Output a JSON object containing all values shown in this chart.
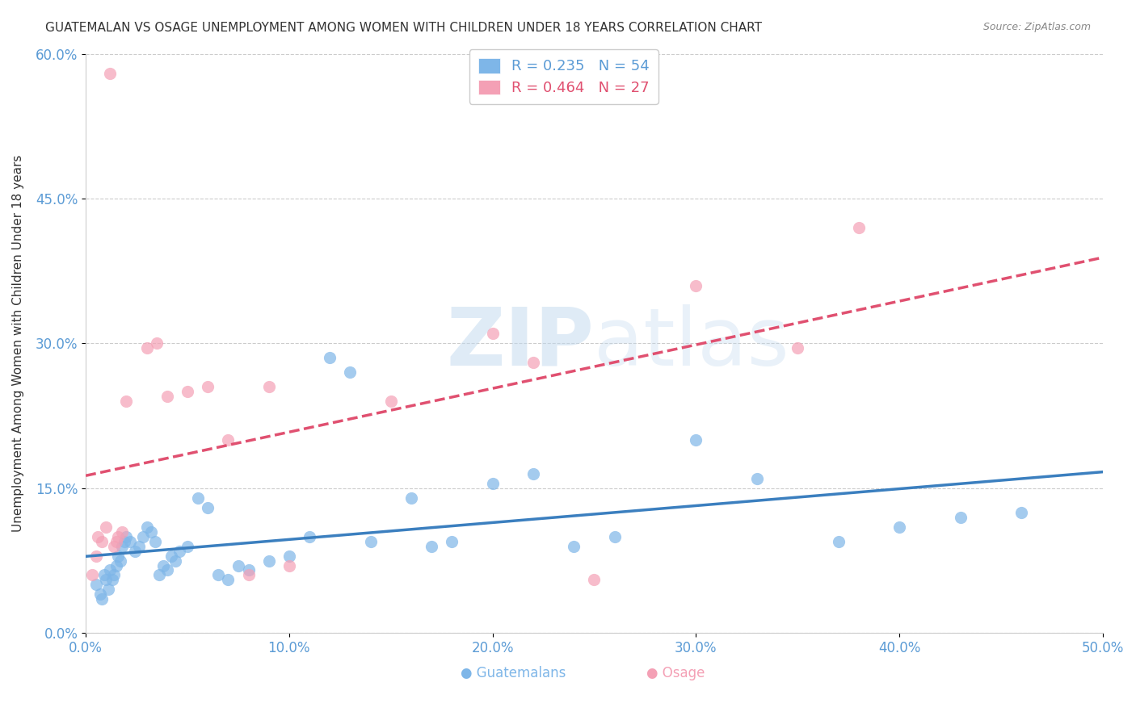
{
  "title": "GUATEMALAN VS OSAGE UNEMPLOYMENT AMONG WOMEN WITH CHILDREN UNDER 18 YEARS CORRELATION CHART",
  "source": "Source: ZipAtlas.com",
  "ylabel": "Unemployment Among Women with Children Under 18 years",
  "xlabel_ticks": [
    "0.0%",
    "10.0%",
    "20.0%",
    "30.0%",
    "40.0%",
    "50.0%"
  ],
  "ylabel_ticks": [
    "0.0%",
    "15.0%",
    "30.0%",
    "45.0%",
    "60.0%"
  ],
  "xlim": [
    0.0,
    0.5
  ],
  "ylim": [
    0.0,
    0.6
  ],
  "watermark": "ZIPatlas",
  "guatemalan_R": 0.235,
  "guatemalan_N": 54,
  "osage_R": 0.464,
  "osage_N": 27,
  "guatemalan_color": "#7EB6E8",
  "osage_color": "#F4A0B5",
  "guatemalan_line_color": "#3B7FBF",
  "osage_line_color": "#E05070",
  "guatemalan_x": [
    0.005,
    0.007,
    0.008,
    0.009,
    0.01,
    0.011,
    0.012,
    0.013,
    0.014,
    0.015,
    0.016,
    0.017,
    0.018,
    0.019,
    0.02,
    0.022,
    0.024,
    0.026,
    0.028,
    0.03,
    0.032,
    0.034,
    0.036,
    0.038,
    0.04,
    0.042,
    0.044,
    0.046,
    0.05,
    0.055,
    0.06,
    0.065,
    0.07,
    0.075,
    0.08,
    0.09,
    0.1,
    0.11,
    0.12,
    0.13,
    0.14,
    0.16,
    0.17,
    0.18,
    0.2,
    0.22,
    0.24,
    0.26,
    0.3,
    0.33,
    0.37,
    0.4,
    0.43,
    0.46
  ],
  "guatemalan_y": [
    0.05,
    0.04,
    0.035,
    0.06,
    0.055,
    0.045,
    0.065,
    0.055,
    0.06,
    0.07,
    0.08,
    0.075,
    0.09,
    0.095,
    0.1,
    0.095,
    0.085,
    0.09,
    0.1,
    0.11,
    0.105,
    0.095,
    0.06,
    0.07,
    0.065,
    0.08,
    0.075,
    0.085,
    0.09,
    0.14,
    0.13,
    0.06,
    0.055,
    0.07,
    0.065,
    0.075,
    0.08,
    0.1,
    0.285,
    0.27,
    0.095,
    0.14,
    0.09,
    0.095,
    0.155,
    0.165,
    0.09,
    0.1,
    0.2,
    0.16,
    0.095,
    0.11,
    0.12,
    0.125
  ],
  "osage_x": [
    0.003,
    0.005,
    0.006,
    0.008,
    0.01,
    0.012,
    0.014,
    0.015,
    0.016,
    0.018,
    0.02,
    0.03,
    0.035,
    0.04,
    0.05,
    0.06,
    0.07,
    0.08,
    0.09,
    0.1,
    0.15,
    0.2,
    0.22,
    0.25,
    0.3,
    0.35,
    0.38
  ],
  "osage_y": [
    0.06,
    0.08,
    0.1,
    0.095,
    0.11,
    0.58,
    0.09,
    0.095,
    0.1,
    0.105,
    0.24,
    0.295,
    0.3,
    0.245,
    0.25,
    0.255,
    0.2,
    0.06,
    0.255,
    0.07,
    0.24,
    0.31,
    0.28,
    0.055,
    0.36,
    0.295,
    0.42
  ],
  "title_color": "#333333",
  "source_color": "#888888",
  "axis_label_color": "#333333",
  "tick_label_color": "#5B9BD5",
  "grid_color": "#CCCCCC",
  "background_color": "#FFFFFF"
}
